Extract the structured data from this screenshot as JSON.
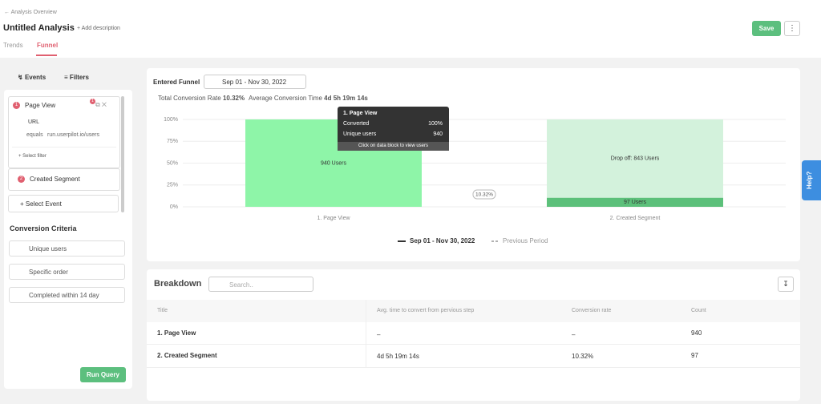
{
  "header": {
    "back_link": "Analysis Overview",
    "title": "Untitled Analysis",
    "add_description": "+ Add description",
    "tabs": [
      "Trends",
      "Funnel"
    ],
    "save": "Save"
  },
  "sidebar": {
    "tabs": [
      "Events",
      "Filters"
    ],
    "events": [
      {
        "index": "1",
        "name": "Page View",
        "badge": "1"
      },
      {
        "index": "2",
        "name": "Created Segment"
      }
    ],
    "filter": {
      "property": "URL",
      "operator": "equals",
      "value": "run.userpilot.io/users"
    },
    "select_filter": "+ Select filter",
    "select_event": "+ Select Event",
    "criteria_title": "Conversion Criteria",
    "criteria": [
      "Unique users",
      "Specific order",
      "Completed within 14 day"
    ],
    "run_query": "Run Query"
  },
  "funnel": {
    "label": "Entered Funnel",
    "date_range": "Sep 01 - Nov 30, 2022",
    "total_conversion_label": "Total Conversion Rate",
    "total_conversion": "10.32%",
    "avg_time_label": "Average Conversion Time",
    "avg_time": "4d 5h 19m 14s"
  },
  "funnel_chart": {
    "type": "bar",
    "categories": [
      "1. Page View",
      "2. Created Segment"
    ],
    "values": [
      100,
      10.32
    ],
    "colors": [
      "#8ef5a8",
      "#5cc07a"
    ],
    "dropoff_values": [
      0,
      89.68
    ],
    "dropoff_color": "#d3f2dc",
    "ylim": [
      0,
      100
    ],
    "yticks": [
      {
        "value": 0,
        "label": "0%"
      },
      {
        "value": 25,
        "label": "25%"
      },
      {
        "value": 50,
        "label": "50%"
      },
      {
        "value": 75,
        "label": "75%"
      },
      {
        "value": 100,
        "label": "100%"
      }
    ],
    "grid": true,
    "users_labels": [
      "940 Users",
      "97 Users"
    ],
    "dropoff_label": "Drop off: 843 Users",
    "conversion_badge": "10.32%",
    "legend": [
      "Sep 01 - Nov 30, 2022",
      "Previous Period"
    ]
  },
  "tooltip": {
    "title": "1. Page View",
    "rows": [
      [
        "Converted",
        "100%"
      ],
      [
        "Unique users",
        "940"
      ]
    ],
    "footer": "Click on data block to view users"
  },
  "breakdown": {
    "title": "Breakdown",
    "search_placeholder": "Search..",
    "columns": [
      "Title",
      "Avg. time to convert from pervious step",
      "Conversion rate",
      "Count"
    ],
    "rows": [
      [
        "1. Page View",
        "–",
        "–",
        "940"
      ],
      [
        "2. Created Segment",
        "4d 5h 19m 14s",
        "10.32%",
        "97"
      ]
    ]
  },
  "help": "Help?"
}
